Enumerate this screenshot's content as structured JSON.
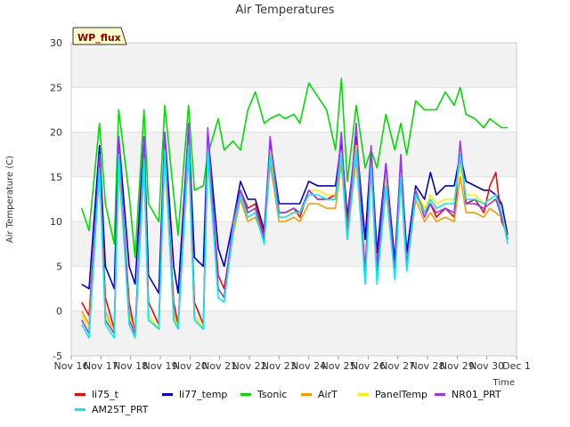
{
  "chart_data": {
    "type": "line",
    "title": "Air Temperatures",
    "site_badge": "WP_flux",
    "xlabel": "Time",
    "ylabel": "Air Temperature (C)",
    "ylim": [
      -5,
      30
    ],
    "yticks": [
      -5,
      0,
      5,
      10,
      15,
      20,
      25,
      30
    ],
    "xlim": [
      "Nov 16",
      "Dec 1"
    ],
    "xticks": [
      "Nov 16",
      "Nov 17",
      "Nov 18",
      "Nov 19",
      "Nov 20",
      "Nov 21",
      "Nov 22",
      "Nov 23",
      "Nov 24",
      "Nov 25",
      "Nov 26",
      "Nov 27",
      "Nov 28",
      "Nov 29",
      "Nov 30",
      "Dec 1"
    ],
    "grid": "alternating horizontal bands",
    "legend_position": "bottom",
    "x_unit": "days from Nov 16",
    "series": [
      {
        "name": "li75_t",
        "color": "#ff0000",
        "x": [
          0.35,
          0.6,
          0.95,
          1.15,
          1.45,
          1.6,
          1.95,
          2.15,
          2.45,
          2.6,
          2.95,
          3.15,
          3.45,
          3.6,
          3.95,
          4.15,
          4.45,
          4.6,
          4.95,
          5.15,
          5.45,
          5.7,
          5.95,
          6.2,
          6.5,
          6.7,
          7.0,
          7.2,
          7.5,
          7.7,
          8.0,
          8.3,
          8.6,
          8.9,
          9.1,
          9.3,
          9.6,
          9.9,
          10.1,
          10.3,
          10.6,
          10.9,
          11.1,
          11.3,
          11.6,
          11.9,
          12.1,
          12.3,
          12.6,
          12.9,
          13.1,
          13.3,
          13.6,
          13.9,
          14.1,
          14.3,
          14.5,
          14.7
        ],
        "y": [
          1,
          -0.5,
          16.5,
          1.5,
          -2,
          17.5,
          1,
          -2.5,
          17,
          1,
          -1.5,
          18,
          1,
          -1.5,
          19,
          1,
          -1.5,
          18.5,
          4,
          2.5,
          9,
          13.5,
          11.5,
          12,
          8.5,
          18,
          11,
          11,
          11.5,
          10.5,
          13.5,
          12.5,
          12.5,
          13,
          16.5,
          10,
          19,
          4.5,
          17.5,
          5,
          15,
          4.5,
          16,
          5,
          13.5,
          11,
          12,
          10.5,
          11.5,
          10.5,
          17.5,
          12,
          12.5,
          11,
          14,
          15.5,
          10,
          8.5
        ]
      },
      {
        "name": "li77_temp",
        "color": "#0000cc",
        "x": [
          0.35,
          0.6,
          0.95,
          1.15,
          1.45,
          1.6,
          1.95,
          2.15,
          2.45,
          2.6,
          2.95,
          3.15,
          3.45,
          3.6,
          3.95,
          4.15,
          4.45,
          4.6,
          4.95,
          5.15,
          5.45,
          5.7,
          5.95,
          6.2,
          6.5,
          6.7,
          7.0,
          7.2,
          7.5,
          7.7,
          8.0,
          8.3,
          8.6,
          8.9,
          9.1,
          9.3,
          9.6,
          9.9,
          10.1,
          10.3,
          10.6,
          10.9,
          11.1,
          11.3,
          11.6,
          11.9,
          12.1,
          12.3,
          12.6,
          12.9,
          13.1,
          13.3,
          13.6,
          13.9,
          14.1,
          14.3,
          14.5,
          14.7
        ],
        "y": [
          3,
          2.5,
          18.5,
          5,
          2.5,
          19.5,
          5,
          3,
          19.5,
          4,
          2,
          20,
          5,
          2,
          20.5,
          6,
          5,
          20,
          7,
          5,
          10,
          14.5,
          12.5,
          12.5,
          9,
          19,
          12,
          12,
          12,
          12,
          14.5,
          14,
          14,
          14,
          19,
          10.5,
          19.5,
          8,
          18,
          6.5,
          16.5,
          5.5,
          17,
          6.5,
          14,
          12.5,
          15.5,
          13,
          14,
          14,
          17.5,
          14.5,
          14,
          13.5,
          13.5,
          13,
          12,
          8.5
        ]
      },
      {
        "name": "Tsonic",
        "color": "#00dd00",
        "x": [
          0.35,
          0.6,
          0.95,
          1.15,
          1.45,
          1.6,
          1.95,
          2.15,
          2.45,
          2.6,
          2.95,
          3.15,
          3.45,
          3.6,
          3.95,
          4.15,
          4.45,
          4.6,
          4.95,
          5.15,
          5.45,
          5.7,
          5.95,
          6.2,
          6.5,
          6.7,
          7.0,
          7.2,
          7.5,
          7.7,
          8.0,
          8.3,
          8.6,
          8.9,
          9.1,
          9.3,
          9.6,
          9.9,
          10.1,
          10.3,
          10.6,
          10.9,
          11.1,
          11.3,
          11.6,
          11.9,
          12.1,
          12.3,
          12.6,
          12.9,
          13.1,
          13.3,
          13.6,
          13.9,
          14.1,
          14.3,
          14.5,
          14.7
        ],
        "y": [
          11.5,
          9,
          21,
          12,
          7.5,
          22.5,
          13,
          6,
          22.5,
          12,
          10,
          23,
          13,
          8.5,
          23,
          13.5,
          14,
          17.5,
          21.5,
          18,
          19,
          18,
          22.5,
          24.5,
          21,
          21.5,
          22,
          21.5,
          22,
          21,
          25.5,
          24,
          22.5,
          18,
          26,
          14.5,
          23,
          16,
          18,
          16,
          22,
          18,
          21,
          17.5,
          23.5,
          22.5,
          22.5,
          22.5,
          24.5,
          23,
          25,
          22,
          21.5,
          20.5,
          21.5,
          21,
          20.5,
          20.5
        ]
      },
      {
        "name": "AirT",
        "color": "#ff9900",
        "x": [
          0.35,
          0.6,
          0.95,
          1.15,
          1.45,
          1.6,
          1.95,
          2.15,
          2.45,
          2.6,
          2.95,
          3.15,
          3.45,
          3.6,
          3.95,
          4.15,
          4.45,
          4.6,
          4.95,
          5.15,
          5.45,
          5.7,
          5.95,
          6.2,
          6.5,
          6.7,
          7.0,
          7.2,
          7.5,
          7.7,
          8.0,
          8.3,
          8.6,
          8.9,
          9.1,
          9.3,
          9.6,
          9.9,
          10.1,
          10.3,
          10.6,
          10.9,
          11.1,
          11.3,
          11.6,
          11.9,
          12.1,
          12.3,
          12.6,
          12.9,
          13.1,
          13.3,
          13.6,
          13.9,
          14.1,
          14.3,
          14.5,
          14.7
        ],
        "y": [
          0,
          -1.5,
          15.5,
          0,
          -2.5,
          16,
          0,
          -3,
          16,
          -0.5,
          -2,
          17,
          0,
          -2,
          17.5,
          -0.5,
          -2,
          17,
          2.5,
          1.5,
          8.5,
          12.5,
          10,
          10.5,
          8,
          16.5,
          10,
          10,
          10.5,
          10,
          12,
          12,
          11.5,
          11.5,
          16.5,
          8,
          17,
          3.5,
          16,
          3.5,
          13.5,
          4,
          14.5,
          4.5,
          12.5,
          10,
          11,
          10,
          10.5,
          10,
          15,
          11,
          11,
          10.5,
          11.5,
          11,
          10.5,
          8
        ]
      },
      {
        "name": "PanelTemp",
        "color": "#ffee00",
        "x": [
          0.35,
          0.6,
          0.95,
          1.15,
          1.45,
          1.6,
          1.95,
          2.15,
          2.45,
          2.6,
          2.95,
          3.15,
          3.45,
          3.6,
          3.95,
          4.15,
          4.45,
          4.6,
          4.95,
          5.15,
          5.45,
          5.7,
          5.95,
          6.2,
          6.5,
          6.7,
          7.0,
          7.2,
          7.5,
          7.7,
          8.0,
          8.3,
          8.6,
          8.9,
          9.1,
          9.3,
          9.6,
          9.9,
          10.1,
          10.3,
          10.6,
          10.9,
          11.1,
          11.3,
          11.6,
          11.9,
          12.1,
          12.3,
          12.6,
          12.9,
          13.1,
          13.3,
          13.6,
          13.9,
          14.1,
          14.3,
          14.5,
          14.7
        ],
        "y": [
          -0.5,
          -2,
          17,
          -0.5,
          -2.5,
          18,
          -0.5,
          -2.5,
          18,
          -0.5,
          -2,
          18.5,
          -0.5,
          -2,
          19,
          -0.5,
          -2,
          18.5,
          2.5,
          1.5,
          9.5,
          13.5,
          11,
          11.5,
          8,
          18,
          11,
          11,
          11,
          11,
          13.5,
          13.5,
          13,
          13,
          17.5,
          9,
          18.5,
          3.5,
          17,
          4,
          15,
          4,
          15.5,
          5,
          13.5,
          11.5,
          13,
          12,
          12.5,
          12.5,
          16,
          13,
          13,
          12,
          12.5,
          12.5,
          11,
          8
        ]
      },
      {
        "name": "NR01_PRT",
        "color": "#9933ff",
        "x": [
          0.35,
          0.6,
          0.95,
          1.15,
          1.45,
          1.6,
          1.95,
          2.15,
          2.45,
          2.6,
          2.95,
          3.15,
          3.45,
          3.6,
          3.95,
          4.15,
          4.45,
          4.6,
          4.95,
          5.15,
          5.45,
          5.7,
          5.95,
          6.2,
          6.5,
          6.7,
          7.0,
          7.2,
          7.5,
          7.7,
          8.0,
          8.3,
          8.6,
          8.9,
          9.1,
          9.3,
          9.6,
          9.9,
          10.1,
          10.3,
          10.6,
          10.9,
          11.1,
          11.3,
          11.6,
          11.9,
          12.1,
          12.3,
          12.6,
          12.9,
          13.1,
          13.3,
          13.6,
          13.9,
          14.1,
          14.3,
          14.5,
          14.7
        ],
        "y": [
          -1,
          -2.5,
          17.5,
          -1,
          -2.5,
          19.5,
          -1,
          -2.5,
          19.5,
          -1,
          -2,
          20,
          -1,
          -2,
          21,
          -1,
          -2,
          20.5,
          2.5,
          1.5,
          10,
          13.5,
          11,
          11.5,
          8,
          19.5,
          11,
          11,
          11.5,
          11,
          13.5,
          12.5,
          12.5,
          12.5,
          20,
          8.5,
          21,
          3.5,
          18.5,
          4,
          16.5,
          4,
          17.5,
          5,
          13.5,
          10.5,
          12,
          11,
          11.5,
          11,
          19,
          12,
          12,
          11.5,
          12,
          12.5,
          10.5,
          8
        ]
      },
      {
        "name": "AM25T_PRT",
        "color": "#00eeee",
        "x": [
          0.35,
          0.6,
          0.95,
          1.15,
          1.45,
          1.6,
          1.95,
          2.15,
          2.45,
          2.6,
          2.95,
          3.15,
          3.45,
          3.6,
          3.95,
          4.15,
          4.45,
          4.6,
          4.95,
          5.15,
          5.45,
          5.7,
          5.95,
          6.2,
          6.5,
          6.7,
          7.0,
          7.2,
          7.5,
          7.7,
          8.0,
          8.3,
          8.6,
          8.9,
          9.1,
          9.3,
          9.6,
          9.9,
          10.1,
          10.3,
          10.6,
          10.9,
          11.1,
          11.3,
          11.6,
          11.9,
          12.1,
          12.3,
          12.6,
          12.9,
          13.1,
          13.3,
          13.6,
          13.9,
          14.1,
          14.3,
          14.5,
          14.7
        ],
        "y": [
          -1.5,
          -3,
          16,
          -1.5,
          -3,
          17.5,
          -1.5,
          -3,
          17,
          -1,
          -2,
          18,
          -1,
          -2,
          18.5,
          -1,
          -2,
          18,
          1.5,
          1,
          9,
          13,
          10.5,
          11,
          7.5,
          17.5,
          10.5,
          10.5,
          11,
          11,
          13,
          13,
          12.5,
          12.5,
          17.5,
          8,
          18,
          3,
          16,
          3,
          14,
          3.5,
          15,
          4.5,
          13,
          11,
          12.5,
          11.5,
          12,
          12,
          17.5,
          12.5,
          12.5,
          12,
          12.5,
          13,
          11,
          7.5
        ]
      }
    ],
    "legend_order": [
      "li75_t",
      "li77_temp",
      "Tsonic",
      "AirT",
      "PanelTemp",
      "NR01_PRT",
      "AM25T_PRT"
    ]
  }
}
